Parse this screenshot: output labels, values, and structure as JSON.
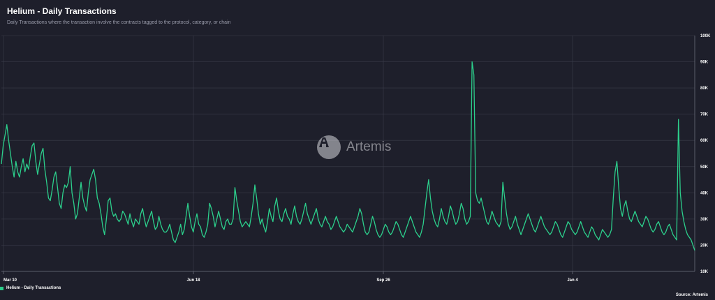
{
  "header": {
    "title": "Helium - Daily Transactions",
    "subtitle": "Daily Transactions where the transaction involve the contracts tagged to the protocol, category, or chain"
  },
  "watermark": {
    "text": "Artemis",
    "icon": "artemis-logo-icon"
  },
  "legend": {
    "label": "Helium - Daily Transactions"
  },
  "source": {
    "text": "Source: Artemis"
  },
  "colors": {
    "background": "#1e1f2b",
    "line": "#2ccf8c",
    "grid": "#3a3c4a"
  },
  "chart_data": {
    "type": "line",
    "title": "Helium - Daily Transactions",
    "xlabel": "",
    "ylabel": "",
    "x_tick_labels": [
      "Mar 10",
      "Jun 18",
      "Sep 26",
      "Jan 4"
    ],
    "y_tick_labels": [
      "10K",
      "20K",
      "30K",
      "40K",
      "50K",
      "60K",
      "70K",
      "80K",
      "90K",
      "100K"
    ],
    "ylim": [
      10000,
      100000
    ],
    "grid": true,
    "legend_position": "bottom-left",
    "series": [
      {
        "name": "Helium - Daily Transactions",
        "values": [
          51000,
          58000,
          62000,
          66000,
          60000,
          55000,
          50000,
          46000,
          52000,
          48000,
          46000,
          50000,
          53000,
          48000,
          51000,
          49000,
          54000,
          58000,
          59000,
          52000,
          47000,
          51000,
          55000,
          57000,
          49000,
          44000,
          38000,
          37000,
          41000,
          46000,
          48000,
          42000,
          36000,
          34000,
          40000,
          43000,
          42000,
          44000,
          50000,
          40000,
          36000,
          30000,
          32000,
          38000,
          44000,
          38000,
          35000,
          33000,
          40000,
          45000,
          47000,
          49000,
          45000,
          38000,
          36000,
          32000,
          27000,
          24000,
          30000,
          37000,
          38000,
          33000,
          31000,
          32000,
          30000,
          29000,
          30000,
          33000,
          32000,
          30000,
          28000,
          32000,
          29000,
          27000,
          30000,
          29000,
          28000,
          32000,
          34000,
          30000,
          27000,
          29000,
          31000,
          33000,
          29000,
          26000,
          27000,
          31000,
          28000,
          26000,
          25000,
          25000,
          26000,
          28000,
          25000,
          22000,
          21000,
          23000,
          25000,
          28000,
          24000,
          26000,
          31000,
          36000,
          31000,
          27000,
          25000,
          29000,
          32000,
          28000,
          27000,
          24000,
          23000,
          25000,
          28000,
          36000,
          34000,
          31000,
          27000,
          30000,
          33000,
          30000,
          27000,
          26000,
          29000,
          30000,
          28000,
          28000,
          30000,
          42000,
          37000,
          33000,
          29000,
          27000,
          28000,
          29000,
          28000,
          27000,
          31000,
          36000,
          43000,
          38000,
          32000,
          28000,
          30000,
          27000,
          25000,
          29000,
          34000,
          31000,
          29000,
          35000,
          38000,
          33000,
          30000,
          29000,
          32000,
          34000,
          31000,
          30000,
          28000,
          32000,
          35000,
          31000,
          29000,
          28000,
          30000,
          33000,
          36000,
          32000,
          30000,
          28000,
          30000,
          32000,
          34000,
          30000,
          28000,
          27000,
          29000,
          31000,
          29000,
          28000,
          26000,
          27000,
          29000,
          31000,
          29000,
          27000,
          26000,
          25000,
          26000,
          28000,
          27000,
          26000,
          25000,
          27000,
          29000,
          31000,
          34000,
          32000,
          28000,
          25000,
          24000,
          25000,
          28000,
          31000,
          29000,
          26000,
          24000,
          23000,
          24000,
          26000,
          28000,
          27000,
          25000,
          24000,
          25000,
          27000,
          29000,
          28000,
          26000,
          24000,
          23000,
          25000,
          27000,
          29000,
          31000,
          29000,
          27000,
          25000,
          24000,
          23000,
          25000,
          28000,
          34000,
          40000,
          45000,
          38000,
          33000,
          30000,
          28000,
          27000,
          30000,
          34000,
          31000,
          29000,
          28000,
          31000,
          35000,
          33000,
          30000,
          28000,
          29000,
          32000,
          36000,
          34000,
          30000,
          28000,
          29000,
          31000,
          90000,
          85000,
          40000,
          37000,
          36000,
          38000,
          35000,
          32000,
          29000,
          28000,
          30000,
          33000,
          31000,
          29000,
          28000,
          27000,
          29000,
          44000,
          38000,
          32000,
          28000,
          26000,
          27000,
          29000,
          31000,
          28000,
          26000,
          24000,
          26000,
          28000,
          30000,
          32000,
          30000,
          28000,
          26000,
          25000,
          27000,
          29000,
          31000,
          29000,
          27000,
          26000,
          25000,
          24000,
          25000,
          27000,
          29000,
          28000,
          26000,
          24000,
          23000,
          25000,
          27000,
          29000,
          28000,
          26000,
          25000,
          24000,
          25000,
          27000,
          29000,
          27000,
          25000,
          24000,
          23000,
          25000,
          27000,
          26000,
          24000,
          23000,
          22000,
          24000,
          26000,
          25000,
          24000,
          23000,
          24000,
          26000,
          38000,
          48000,
          52000,
          42000,
          34000,
          31000,
          35000,
          37000,
          33000,
          30000,
          29000,
          31000,
          33000,
          31000,
          29000,
          28000,
          27000,
          29000,
          31000,
          30000,
          28000,
          26000,
          25000,
          26000,
          28000,
          29000,
          27000,
          25000,
          24000,
          25000,
          27000,
          28000,
          26000,
          24000,
          23000,
          22000,
          68000,
          40000,
          33000,
          29000,
          26000,
          24000,
          23000,
          22000,
          20000,
          18000
        ]
      }
    ]
  }
}
